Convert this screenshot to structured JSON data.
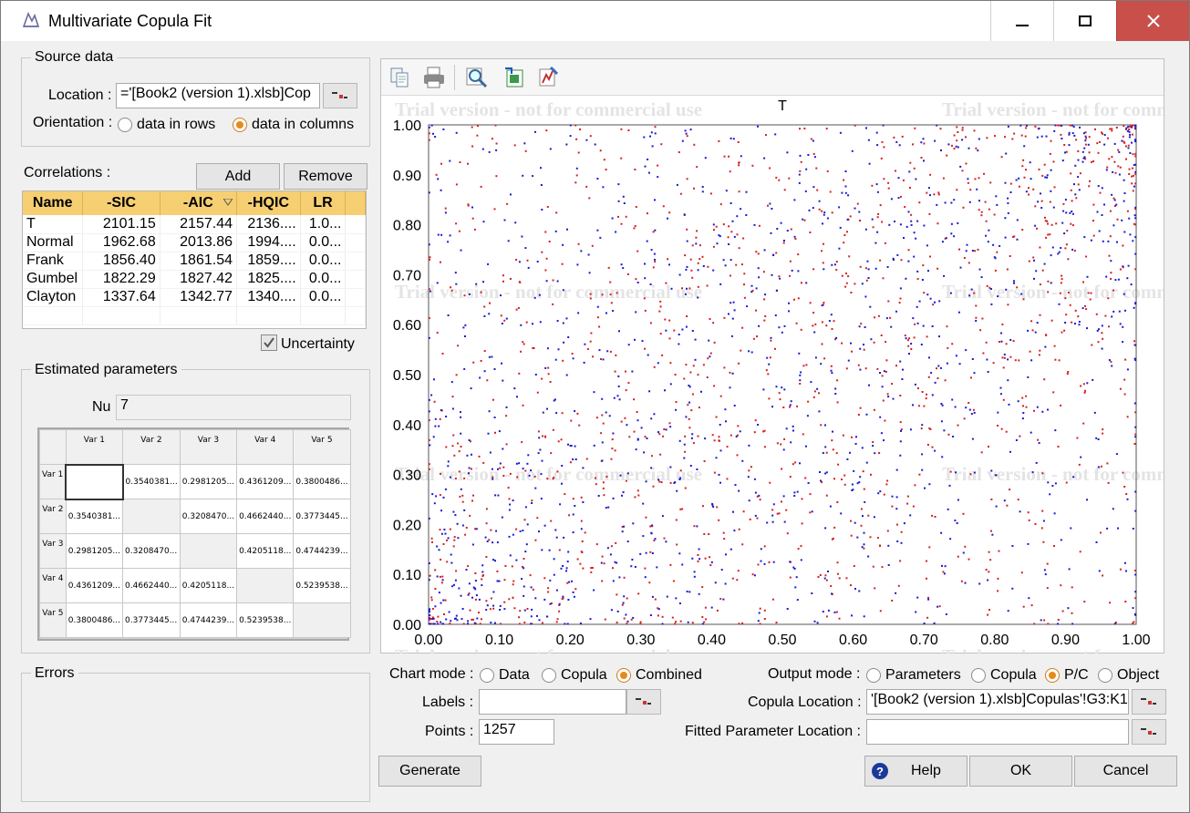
{
  "window": {
    "title": "Multivariate Copula Fit"
  },
  "source_data": {
    "group_title": "Source data",
    "location_label": "Location :",
    "location_value": "='[Book2 (version 1).xlsb]Cop",
    "orientation_label": "Orientation :",
    "orientation_options": [
      "data in rows",
      "data in columns"
    ],
    "orientation_selected": "data in columns"
  },
  "correlations": {
    "label": "Correlations :",
    "add_label": "Add",
    "remove_label": "Remove",
    "columns": [
      "Name",
      "-SIC",
      "-AIC",
      "-HQIC",
      "LR"
    ],
    "rows": [
      [
        "T",
        "2101.15",
        "2157.44",
        "2136....",
        "1.0..."
      ],
      [
        "Normal",
        "1962.68",
        "2013.86",
        "1994....",
        "0.0..."
      ],
      [
        "Frank",
        "1856.40",
        "1861.54",
        "1859....",
        "0.0..."
      ],
      [
        "Gumbel",
        "1822.29",
        "1827.42",
        "1825....",
        "0.0..."
      ],
      [
        "Clayton",
        "1337.64",
        "1342.77",
        "1340....",
        "0.0..."
      ]
    ],
    "uncertainty_label": "Uncertainty",
    "uncertainty_checked": true
  },
  "estimated_parameters": {
    "group_title": "Estimated parameters",
    "nu_label": "Nu",
    "nu_value": "7",
    "var_headers": [
      "Var 1",
      "Var 2",
      "Var 3",
      "Var 4",
      "Var 5"
    ],
    "matrix": [
      [
        "",
        "0.3540381...",
        "0.2981205...",
        "0.4361209...",
        "0.3800486..."
      ],
      [
        "0.3540381...",
        "",
        "0.3208470...",
        "0.4662440...",
        "0.3773445..."
      ],
      [
        "0.2981205...",
        "0.3208470...",
        "",
        "0.4205118...",
        "0.4744239..."
      ],
      [
        "0.4361209...",
        "0.4662440...",
        "0.4205118...",
        "",
        "0.5239538..."
      ],
      [
        "0.3800486...",
        "0.3773445...",
        "0.4744239...",
        "0.5239538...",
        ""
      ]
    ]
  },
  "errors": {
    "group_title": "Errors"
  },
  "chart": {
    "watermark": "Trial version - not for commercial use"
  },
  "chart_data": {
    "type": "scatter",
    "title": "T",
    "xlim": [
      0,
      1
    ],
    "ylim": [
      0,
      1
    ],
    "x_ticks": [
      "0.00",
      "0.10",
      "0.20",
      "0.30",
      "0.40",
      "0.50",
      "0.60",
      "0.70",
      "0.80",
      "0.90",
      "1.00"
    ],
    "y_ticks": [
      "0.00",
      "0.10",
      "0.20",
      "0.30",
      "0.40",
      "0.50",
      "0.60",
      "0.70",
      "0.80",
      "0.90",
      "1.00"
    ],
    "series": [
      {
        "color": "#d42020",
        "n_points": 1257
      },
      {
        "color": "#1a1ad0",
        "n_points": 1257
      }
    ]
  },
  "controls": {
    "chart_mode_label": "Chart mode :",
    "chart_mode_options": [
      "Data",
      "Copula",
      "Combined"
    ],
    "chart_mode_selected": "Combined",
    "output_mode_label": "Output mode :",
    "output_mode_options": [
      "Parameters",
      "Copula",
      "P/C",
      "Object"
    ],
    "output_mode_selected": "P/C",
    "labels_label": "Labels :",
    "labels_value": "",
    "points_label": "Points :",
    "points_value": "1257",
    "copula_location_label": "Copula Location :",
    "copula_location_value": "'[Book2 (version 1).xlsb]Copulas'!G3:K1",
    "fitted_param_label": "Fitted Parameter Location :",
    "fitted_param_value": ""
  },
  "buttons": {
    "generate": "Generate",
    "help": "Help",
    "ok": "OK",
    "cancel": "Cancel"
  },
  "colors": {
    "accent_header": "#f6cf73",
    "close_button": "#c9504a",
    "series_red": "#d42020",
    "series_blue": "#1a1ad0"
  }
}
